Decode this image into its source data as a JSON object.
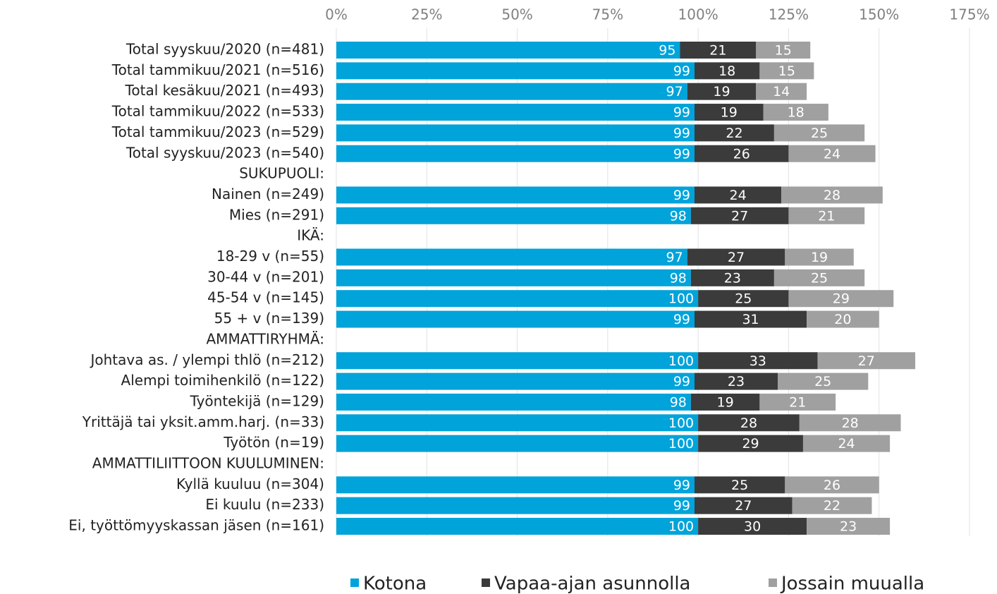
{
  "chart_data": {
    "type": "stacked-bar-horizontal",
    "categories": [
      "Total syyskuu/2020 (n=481)",
      "Total tammikuu/2021 (n=516)",
      "Total kesäkuu/2021 (n=493)",
      "Total tammikuu/2022 (n=533)",
      "Total tammikuu/2023 (n=529)",
      "Total syyskuu/2023 (n=540)",
      "SUKUPUOLI:",
      "Nainen (n=249)",
      "Mies (n=291)",
      "IKÄ:",
      "18-29 v (n=55)",
      "30-44 v (n=201)",
      "45-54 v (n=145)",
      "55 + v (n=139)",
      "AMMATTIRYHMÄ:",
      "Johtava as. / ylempi thlö (n=212)",
      "Alempi toimihenkilö (n=122)",
      "Työntekijä (n=129)",
      "Yrittäjä tai yksit.amm.harj. (n=33)",
      "Työtön (n=19)",
      "AMMATTILIITTOON KUULUMINEN:",
      "Kyllä kuuluu (n=304)",
      "Ei kuulu (n=233)",
      "Ei, työttömyyskassan jäsen (n=161)"
    ],
    "series": [
      {
        "name": "Kotona",
        "color": "#00a3da",
        "values": [
          95,
          99,
          97,
          99,
          99,
          99,
          null,
          99,
          98,
          null,
          97,
          98,
          100,
          99,
          null,
          100,
          99,
          98,
          100,
          100,
          null,
          99,
          99,
          100
        ]
      },
      {
        "name": "Vapaa-ajan asunnolla",
        "color": "#3b3b3b",
        "values": [
          21,
          18,
          19,
          19,
          22,
          26,
          null,
          24,
          27,
          null,
          27,
          23,
          25,
          31,
          null,
          33,
          23,
          19,
          28,
          29,
          null,
          25,
          27,
          30
        ]
      },
      {
        "name": "Jossain muualla",
        "color": "#a0a0a0",
        "values": [
          15,
          15,
          14,
          18,
          25,
          24,
          null,
          28,
          21,
          null,
          19,
          25,
          29,
          20,
          null,
          27,
          25,
          21,
          28,
          24,
          null,
          26,
          22,
          23
        ]
      }
    ],
    "xlim": [
      0,
      175
    ],
    "xticks": [
      {
        "value": 0,
        "label": "0%"
      },
      {
        "value": 25,
        "label": "25%"
      },
      {
        "value": 50,
        "label": "50%"
      },
      {
        "value": 75,
        "label": "75%"
      },
      {
        "value": 100,
        "label": "100%"
      },
      {
        "value": 125,
        "label": "125%"
      },
      {
        "value": 150,
        "label": "150%"
      },
      {
        "value": 175,
        "label": "175%"
      }
    ],
    "grid": true
  }
}
